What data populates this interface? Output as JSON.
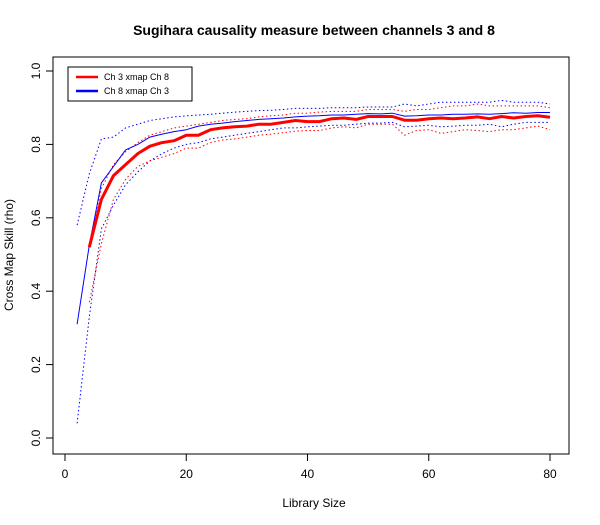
{
  "chart_data": {
    "type": "line",
    "title": "Sugihara causality measure between channels  3 and 8",
    "xlabel": "Library Size",
    "ylabel": "Cross Map Skill (rho)",
    "xlim": [
      0,
      80
    ],
    "ylim": [
      0,
      1
    ],
    "xticks": [
      "0",
      "20",
      "40",
      "60",
      "80"
    ],
    "yticks": [
      "0.0",
      "0.2",
      "0.4",
      "0.6",
      "0.8",
      "1.0"
    ],
    "legend_position": "top-left",
    "series": [
      {
        "name": "Ch 3 xmap Ch 8",
        "color": "#ff0000",
        "x": [
          4,
          6,
          8,
          10,
          12,
          14,
          16,
          18,
          20,
          22,
          24,
          26,
          28,
          30,
          32,
          34,
          36,
          38,
          40,
          42,
          44,
          46,
          48,
          50,
          52,
          54,
          56,
          58,
          60,
          62,
          64,
          66,
          68,
          70,
          72,
          74,
          76,
          78,
          80
        ],
        "y": [
          0.52,
          0.65,
          0.715,
          0.745,
          0.775,
          0.795,
          0.805,
          0.81,
          0.825,
          0.825,
          0.84,
          0.845,
          0.848,
          0.85,
          0.855,
          0.855,
          0.86,
          0.865,
          0.862,
          0.862,
          0.87,
          0.872,
          0.868,
          0.876,
          0.876,
          0.876,
          0.866,
          0.866,
          0.87,
          0.872,
          0.87,
          0.872,
          0.875,
          0.87,
          0.876,
          0.872,
          0.876,
          0.878,
          0.874
        ],
        "upper": [
          0.53,
          0.68,
          0.745,
          0.78,
          0.805,
          0.825,
          0.835,
          0.845,
          0.85,
          0.855,
          0.86,
          0.865,
          0.868,
          0.87,
          0.875,
          0.878,
          0.88,
          0.885,
          0.885,
          0.888,
          0.89,
          0.89,
          0.89,
          0.895,
          0.895,
          0.895,
          0.89,
          0.895,
          0.895,
          0.9,
          0.905,
          0.905,
          0.91,
          0.905,
          0.905,
          0.905,
          0.905,
          0.905,
          0.9
        ],
        "lower": [
          0.37,
          0.53,
          0.65,
          0.705,
          0.74,
          0.755,
          0.765,
          0.775,
          0.79,
          0.79,
          0.805,
          0.812,
          0.815,
          0.82,
          0.825,
          0.828,
          0.832,
          0.836,
          0.838,
          0.838,
          0.845,
          0.848,
          0.845,
          0.855,
          0.855,
          0.855,
          0.825,
          0.838,
          0.84,
          0.83,
          0.835,
          0.84,
          0.838,
          0.835,
          0.84,
          0.84,
          0.845,
          0.85,
          0.84
        ]
      },
      {
        "name": "Ch 8  xmap Ch 3",
        "color": "#0000ff",
        "x": [
          2,
          4,
          6,
          8,
          10,
          12,
          14,
          16,
          18,
          20,
          22,
          24,
          26,
          28,
          30,
          32,
          34,
          36,
          38,
          40,
          42,
          44,
          46,
          48,
          50,
          52,
          54,
          56,
          58,
          60,
          62,
          64,
          66,
          68,
          70,
          72,
          74,
          76,
          78,
          80
        ],
        "y": [
          0.31,
          0.525,
          0.695,
          0.74,
          0.785,
          0.8,
          0.82,
          0.828,
          0.835,
          0.84,
          0.85,
          0.855,
          0.858,
          0.862,
          0.865,
          0.868,
          0.87,
          0.872,
          0.875,
          0.877,
          0.878,
          0.88,
          0.88,
          0.882,
          0.884,
          0.883,
          0.885,
          0.877,
          0.878,
          0.88,
          0.88,
          0.882,
          0.882,
          0.883,
          0.882,
          0.884,
          0.886,
          0.885,
          0.887,
          0.887
        ],
        "upper": [
          0.58,
          0.72,
          0.815,
          0.82,
          0.845,
          0.855,
          0.865,
          0.87,
          0.875,
          0.878,
          0.88,
          0.882,
          0.885,
          0.888,
          0.89,
          0.892,
          0.893,
          0.895,
          0.898,
          0.898,
          0.898,
          0.9,
          0.9,
          0.9,
          0.902,
          0.902,
          0.902,
          0.91,
          0.905,
          0.91,
          0.915,
          0.915,
          0.915,
          0.915,
          0.915,
          0.92,
          0.915,
          0.915,
          0.915,
          0.91
        ],
        "lower": [
          0.04,
          0.33,
          0.57,
          0.635,
          0.69,
          0.725,
          0.755,
          0.775,
          0.79,
          0.8,
          0.805,
          0.815,
          0.82,
          0.825,
          0.83,
          0.835,
          0.84,
          0.845,
          0.845,
          0.848,
          0.85,
          0.852,
          0.852,
          0.855,
          0.858,
          0.858,
          0.86,
          0.848,
          0.85,
          0.852,
          0.848,
          0.85,
          0.852,
          0.852,
          0.855,
          0.848,
          0.855,
          0.86,
          0.86,
          0.86
        ]
      }
    ]
  }
}
